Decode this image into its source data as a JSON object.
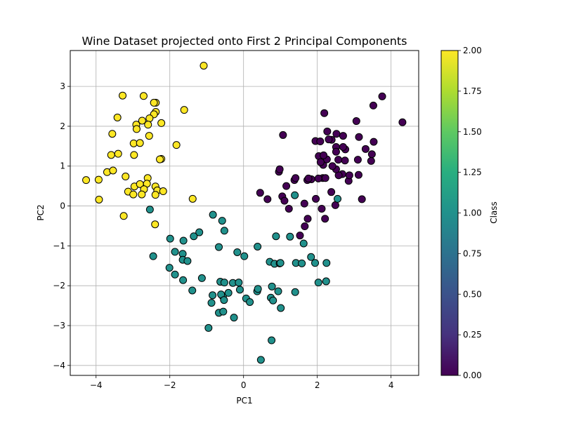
{
  "chart_data": {
    "type": "scatter",
    "title": "Wine Dataset projected onto First 2 Principal Components",
    "xlabel": "PC1",
    "ylabel": "PC2",
    "xlim": [
      -4.7,
      4.75
    ],
    "ylim": [
      -4.25,
      3.9
    ],
    "xticks": [
      -4,
      -2,
      0,
      2,
      4
    ],
    "yticks": [
      -4,
      -3,
      -2,
      -1,
      0,
      1,
      2,
      3
    ],
    "grid": true,
    "colorbar": {
      "label": "Class",
      "range": [
        0.0,
        2.0
      ],
      "ticks": [
        "0.00",
        "0.25",
        "0.50",
        "0.75",
        "1.00",
        "1.25",
        "1.50",
        "1.75",
        "2.00"
      ],
      "colormap": "viridis"
    },
    "series": [
      {
        "class": 0,
        "color": "#440154",
        "points": [
          [
            4.31,
            2.1
          ],
          [
            3.76,
            2.75
          ],
          [
            3.52,
            2.52
          ],
          [
            3.06,
            2.13
          ],
          [
            3.13,
            1.73
          ],
          [
            3.53,
            1.61
          ],
          [
            3.31,
            1.43
          ],
          [
            3.48,
            1.3
          ],
          [
            3.1,
            1.16
          ],
          [
            3.46,
            1.13
          ],
          [
            3.12,
            0.78
          ],
          [
            3.21,
            0.17
          ],
          [
            2.85,
            0.63
          ],
          [
            2.87,
            0.77
          ],
          [
            2.68,
            0.8
          ],
          [
            2.58,
            0.77
          ],
          [
            2.75,
            1.14
          ],
          [
            2.57,
            1.16
          ],
          [
            2.51,
            0.92
          ],
          [
            2.41,
            1.0
          ],
          [
            2.76,
            1.42
          ],
          [
            2.7,
            1.48
          ],
          [
            2.7,
            1.76
          ],
          [
            2.52,
            1.81
          ],
          [
            2.51,
            1.48
          ],
          [
            2.51,
            1.36
          ],
          [
            2.39,
            1.66
          ],
          [
            2.27,
            1.87
          ],
          [
            2.19,
            2.33
          ],
          [
            1.95,
            1.63
          ],
          [
            2.08,
            1.62
          ],
          [
            2.31,
            1.67
          ],
          [
            2.04,
            1.25
          ],
          [
            2.16,
            1.03
          ],
          [
            2.26,
            1.17
          ],
          [
            2.17,
            1.27
          ],
          [
            2.09,
            1.1
          ],
          [
            2.15,
            0.7
          ],
          [
            2.22,
            0.7
          ],
          [
            2.38,
            0.35
          ],
          [
            2.03,
            0.69
          ],
          [
            1.84,
            0.67
          ],
          [
            1.73,
            0.65
          ],
          [
            1.76,
            0.69
          ],
          [
            1.96,
            0.18
          ],
          [
            2.49,
            0.02
          ],
          [
            2.12,
            -0.07
          ],
          [
            2.21,
            -0.32
          ],
          [
            1.74,
            -0.32
          ],
          [
            1.65,
            0.06
          ],
          [
            1.66,
            -0.51
          ],
          [
            1.53,
            -0.74
          ],
          [
            1.38,
            0.65
          ],
          [
            1.41,
            0.7
          ],
          [
            1.16,
            0.5
          ],
          [
            1.05,
            0.24
          ],
          [
            1.11,
            0.13
          ],
          [
            1.23,
            -0.07
          ],
          [
            1.07,
            1.78
          ],
          [
            0.96,
            0.86
          ],
          [
            0.98,
            0.92
          ],
          [
            0.65,
            0.17
          ],
          [
            0.45,
            0.33
          ]
        ]
      },
      {
        "class": 1,
        "color": "#21918c",
        "points": [
          [
            -2.54,
            -0.09
          ],
          [
            -2.45,
            -1.26
          ],
          [
            -1.99,
            -0.82
          ],
          [
            -1.86,
            -1.15
          ],
          [
            -1.63,
            -0.87
          ],
          [
            -1.65,
            -1.2
          ],
          [
            -1.65,
            -1.35
          ],
          [
            -1.52,
            -1.38
          ],
          [
            -1.35,
            -0.76
          ],
          [
            -1.2,
            -0.66
          ],
          [
            -2.01,
            -1.55
          ],
          [
            -1.86,
            -1.72
          ],
          [
            -1.64,
            -1.86
          ],
          [
            -1.39,
            -2.12
          ],
          [
            -1.13,
            -1.81
          ],
          [
            -0.95,
            -3.06
          ],
          [
            -0.87,
            -2.43
          ],
          [
            -0.83,
            -0.22
          ],
          [
            -0.67,
            -1.03
          ],
          [
            -0.58,
            -0.37
          ],
          [
            -0.52,
            -0.62
          ],
          [
            -0.63,
            -1.9
          ],
          [
            -0.52,
            -1.92
          ],
          [
            -0.84,
            -2.24
          ],
          [
            -0.67,
            -2.68
          ],
          [
            -0.55,
            -2.65
          ],
          [
            -0.56,
            -2.27
          ],
          [
            -0.61,
            -2.22
          ],
          [
            -0.53,
            -2.36
          ],
          [
            -0.41,
            -2.18
          ],
          [
            -0.29,
            -1.93
          ],
          [
            -0.13,
            -1.92
          ],
          [
            -0.1,
            -2.1
          ],
          [
            -0.26,
            -2.8
          ],
          [
            0.07,
            -2.32
          ],
          [
            0.17,
            -2.41
          ],
          [
            0.02,
            -1.26
          ],
          [
            -0.17,
            -1.16
          ],
          [
            0.38,
            -1.02
          ],
          [
            0.37,
            -2.14
          ],
          [
            0.39,
            -2.08
          ],
          [
            0.47,
            -3.86
          ],
          [
            0.76,
            -3.37
          ],
          [
            0.77,
            -2.02
          ],
          [
            0.74,
            -2.3
          ],
          [
            0.8,
            -2.37
          ],
          [
            0.94,
            -2.14
          ],
          [
            1.01,
            -2.56
          ],
          [
            0.71,
            -1.4
          ],
          [
            0.84,
            -1.45
          ],
          [
            0.98,
            -1.44
          ],
          [
            1.0,
            -1.43
          ],
          [
            0.88,
            -0.76
          ],
          [
            1.26,
            -0.77
          ],
          [
            1.39,
            0.27
          ],
          [
            1.4,
            -2.16
          ],
          [
            1.42,
            -1.43
          ],
          [
            1.58,
            -1.44
          ],
          [
            1.63,
            -0.94
          ],
          [
            1.83,
            -1.28
          ],
          [
            1.94,
            -1.43
          ],
          [
            2.03,
            -1.92
          ],
          [
            2.24,
            -1.89
          ],
          [
            2.25,
            -1.43
          ],
          [
            2.55,
            0.18
          ]
        ]
      },
      {
        "class": 2,
        "color": "#fde725",
        "points": [
          [
            -1.08,
            3.52
          ],
          [
            -3.28,
            2.77
          ],
          [
            -2.71,
            2.76
          ],
          [
            -2.38,
            2.59
          ],
          [
            -2.43,
            2.59
          ],
          [
            -3.42,
            2.22
          ],
          [
            -2.38,
            2.36
          ],
          [
            -2.43,
            2.3
          ],
          [
            -2.55,
            2.2
          ],
          [
            -2.75,
            2.14
          ],
          [
            -2.23,
            2.08
          ],
          [
            -2.91,
            2.04
          ],
          [
            -2.9,
            1.93
          ],
          [
            -2.59,
            2.04
          ],
          [
            -3.56,
            1.81
          ],
          [
            -2.56,
            1.76
          ],
          [
            -1.61,
            2.41
          ],
          [
            -1.82,
            1.53
          ],
          [
            -2.98,
            1.57
          ],
          [
            -2.81,
            1.58
          ],
          [
            -3.59,
            1.28
          ],
          [
            -3.4,
            1.31
          ],
          [
            -2.97,
            1.28
          ],
          [
            -2.23,
            1.18
          ],
          [
            -2.27,
            1.17
          ],
          [
            -3.7,
            0.85
          ],
          [
            -3.54,
            0.89
          ],
          [
            -3.2,
            0.74
          ],
          [
            -4.27,
            0.65
          ],
          [
            -3.93,
            0.66
          ],
          [
            -2.6,
            0.7
          ],
          [
            -2.96,
            0.49
          ],
          [
            -2.81,
            0.55
          ],
          [
            -2.62,
            0.56
          ],
          [
            -2.39,
            0.49
          ],
          [
            -2.7,
            0.42
          ],
          [
            -2.34,
            0.39
          ],
          [
            -2.18,
            0.37
          ],
          [
            -3.13,
            0.36
          ],
          [
            -2.99,
            0.29
          ],
          [
            -2.76,
            0.29
          ],
          [
            -2.39,
            0.28
          ],
          [
            -3.92,
            0.16
          ],
          [
            -3.25,
            -0.25
          ],
          [
            -2.4,
            -0.46
          ],
          [
            -1.38,
            0.18
          ]
        ]
      }
    ]
  }
}
